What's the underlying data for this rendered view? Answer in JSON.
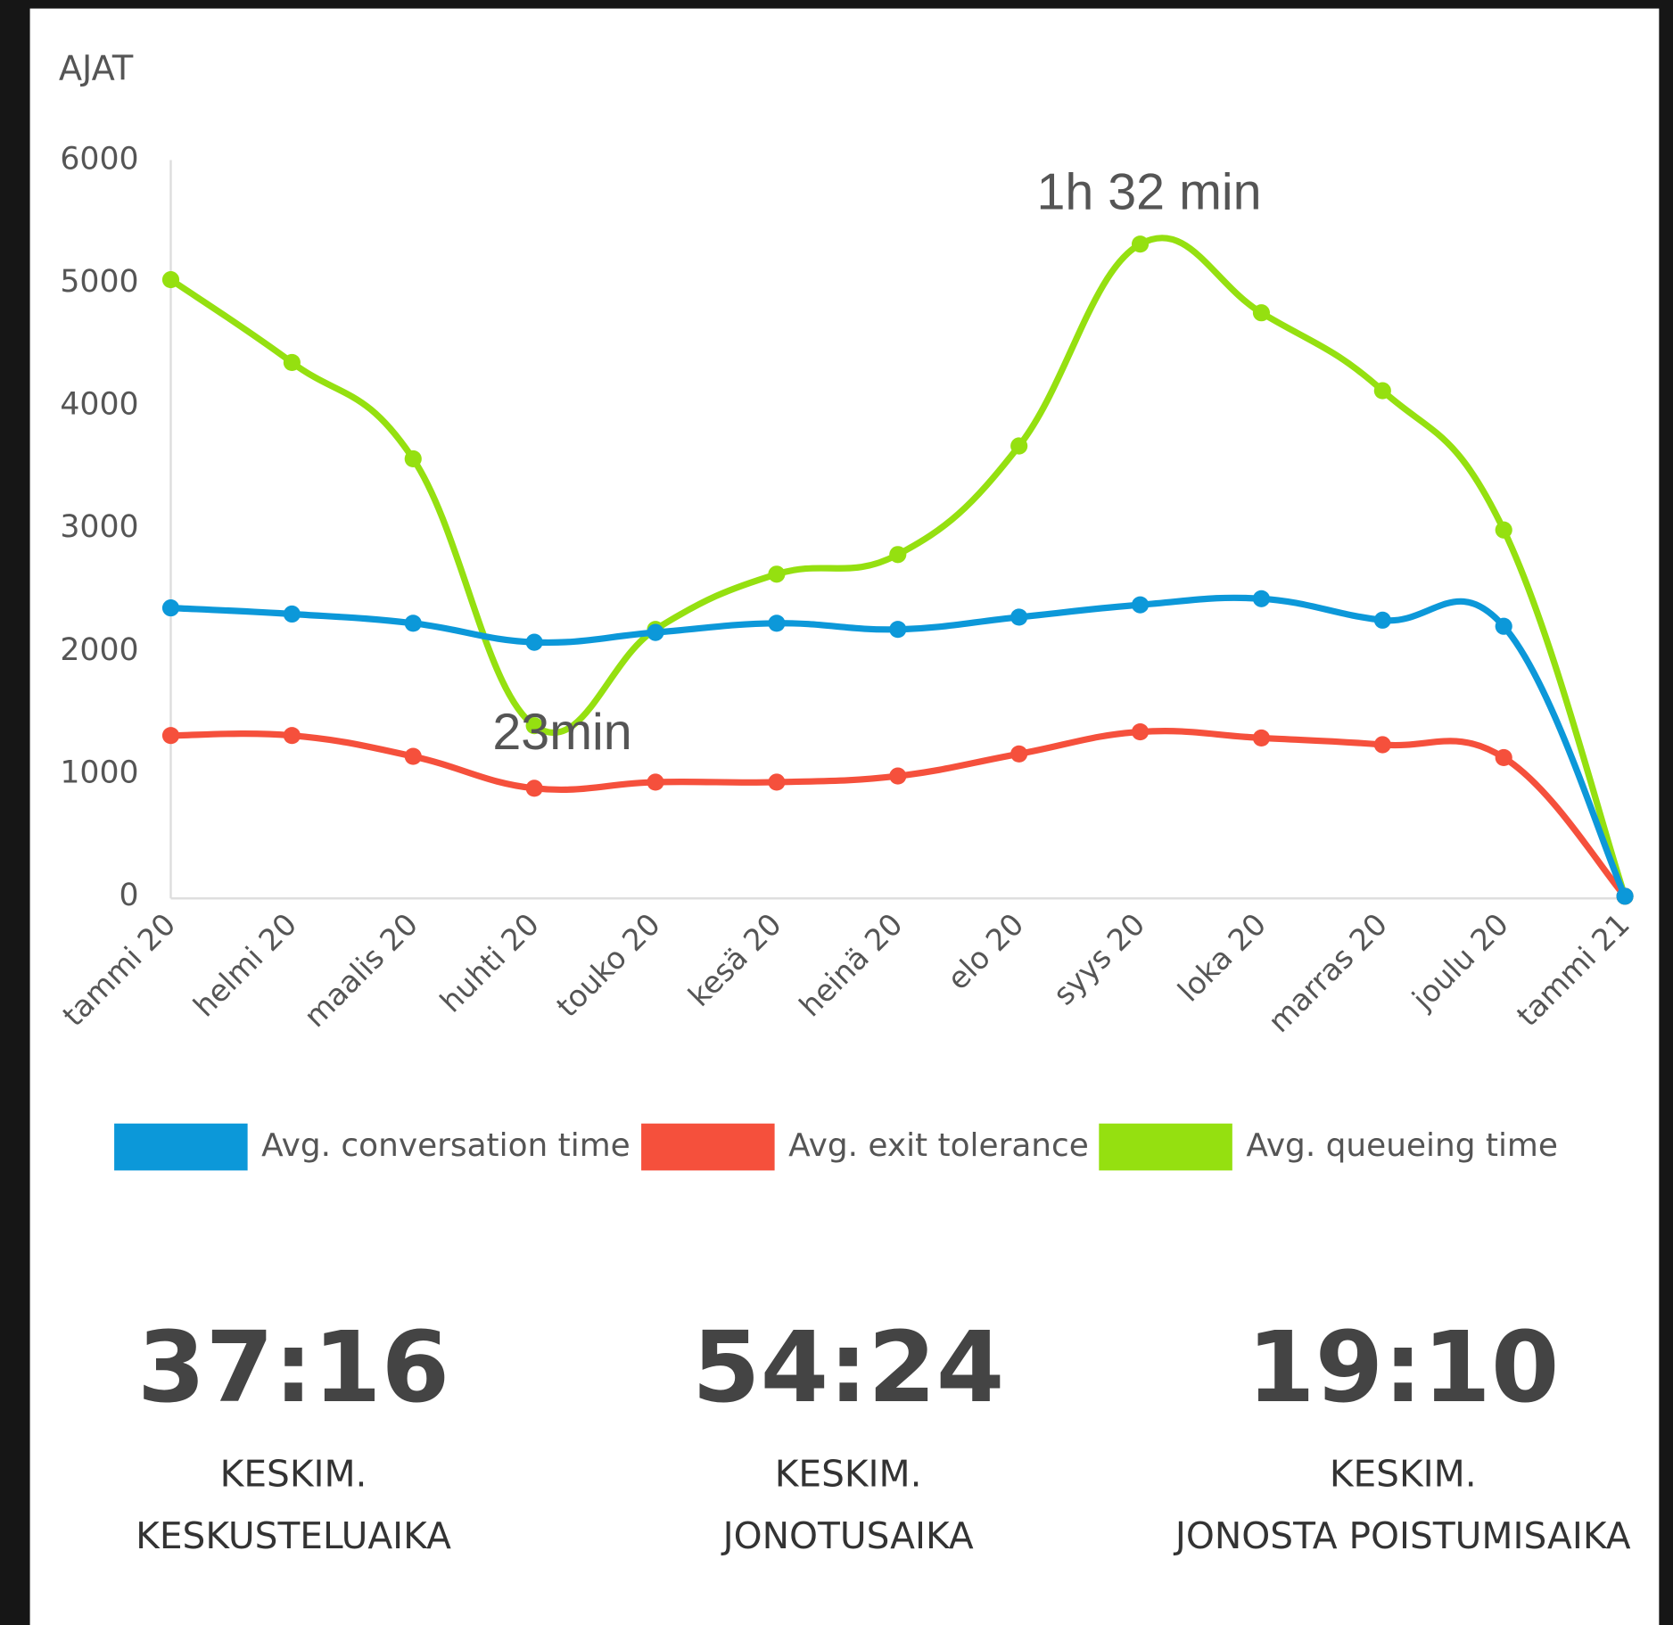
{
  "chart_data": {
    "type": "line",
    "title": "AJAT",
    "categories": [
      "tammi 20",
      "helmi 20",
      "maalis 20",
      "huhti 20",
      "touko 20",
      "kesä 20",
      "heinä 20",
      "elo 20",
      "syys 20",
      "loka 20",
      "marras 20",
      "joulu 20",
      "tammi 21"
    ],
    "series": [
      {
        "name": "Avg. conversation time",
        "color": "#0c98d9",
        "values": [
          2350,
          2300,
          2225,
          2070,
          2150,
          2225,
          2175,
          2275,
          2375,
          2425,
          2250,
          2200,
          0
        ]
      },
      {
        "name": "Avg. exit tolerance",
        "color": "#f5503c",
        "values": [
          1310,
          1310,
          1140,
          880,
          930,
          930,
          980,
          1160,
          1340,
          1290,
          1235,
          1130,
          0
        ]
      },
      {
        "name": "Avg. queueing time",
        "color": "#95e010",
        "values": [
          5025,
          4350,
          3565,
          1390,
          2175,
          2625,
          2785,
          3670,
          5315,
          4755,
          4120,
          2985,
          0
        ]
      }
    ],
    "ylim": [
      0,
      6000
    ],
    "yticks": [
      0,
      1000,
      2000,
      3000,
      4000,
      5000,
      6000
    ],
    "annotations": [
      "1h 32 min",
      "23min"
    ]
  },
  "stats": [
    {
      "value": "37:16",
      "label_lines": [
        "KESKIM.",
        "KESKUSTELUAIKA"
      ]
    },
    {
      "value": "54:24",
      "label_lines": [
        "KESKIM.",
        "JONOTUSAIKA"
      ]
    },
    {
      "value": "19:10",
      "label_lines": [
        "KESKIM.",
        "JONOSTA POISTUMISAIKA"
      ]
    }
  ]
}
